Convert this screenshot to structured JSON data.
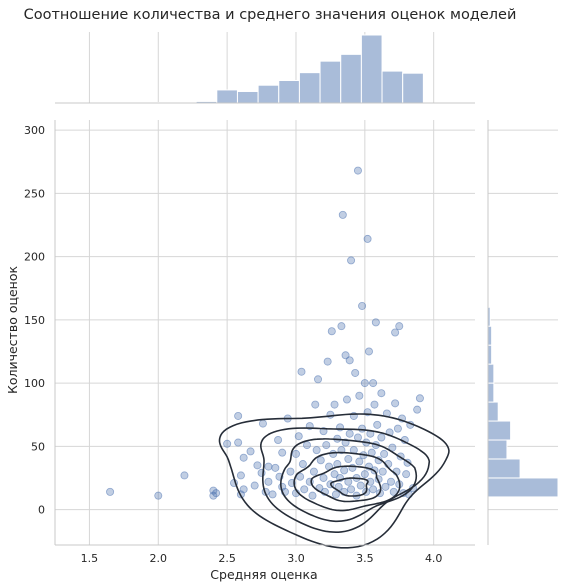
{
  "chart_data": {
    "type": "scatter",
    "title": "Соотношение количества и среднего значения оценок моделей",
    "xlabel": "Средняя оценка",
    "ylabel": "Количество оценок",
    "xlim": [
      1.25,
      4.3
    ],
    "ylim": [
      -28,
      308
    ],
    "x_ticks": [
      "1.5",
      "2.0",
      "2.5",
      "3.0",
      "3.5",
      "4.0"
    ],
    "y_ticks": [
      "0",
      "50",
      "100",
      "150",
      "200",
      "250",
      "300"
    ],
    "grid": true,
    "colors": {
      "points": "#4c72b0",
      "hist": "#a9bcd9",
      "contour": "#262d38",
      "grid": "#d6d6d6",
      "axis": "#c8c8c8"
    },
    "points": [
      [
        1.65,
        14
      ],
      [
        2.0,
        11
      ],
      [
        2.19,
        27
      ],
      [
        2.4,
        15
      ],
      [
        2.4,
        11
      ],
      [
        2.42,
        13
      ],
      [
        2.5,
        52
      ],
      [
        2.55,
        21
      ],
      [
        2.58,
        74
      ],
      [
        2.58,
        53
      ],
      [
        2.6,
        12
      ],
      [
        2.6,
        27
      ],
      [
        2.62,
        16
      ],
      [
        2.62,
        41
      ],
      [
        2.67,
        46
      ],
      [
        2.7,
        19
      ],
      [
        2.72,
        35
      ],
      [
        2.75,
        29
      ],
      [
        2.76,
        68
      ],
      [
        2.78,
        14
      ],
      [
        2.8,
        22
      ],
      [
        2.8,
        34
      ],
      [
        2.83,
        12
      ],
      [
        2.85,
        33
      ],
      [
        2.87,
        55
      ],
      [
        2.88,
        26
      ],
      [
        2.9,
        45
      ],
      [
        2.9,
        18
      ],
      [
        2.92,
        14
      ],
      [
        2.94,
        72
      ],
      [
        2.96,
        30
      ],
      [
        2.97,
        21
      ],
      [
        3.0,
        44
      ],
      [
        3.0,
        13
      ],
      [
        3.02,
        58
      ],
      [
        3.03,
        26
      ],
      [
        3.04,
        109
      ],
      [
        3.05,
        36
      ],
      [
        3.06,
        16
      ],
      [
        3.08,
        51
      ],
      [
        3.1,
        22
      ],
      [
        3.1,
        66
      ],
      [
        3.12,
        11
      ],
      [
        3.13,
        30
      ],
      [
        3.14,
        83
      ],
      [
        3.15,
        47
      ],
      [
        3.16,
        103
      ],
      [
        3.17,
        17
      ],
      [
        3.18,
        39
      ],
      [
        3.2,
        25
      ],
      [
        3.2,
        62
      ],
      [
        3.21,
        14
      ],
      [
        3.22,
        51
      ],
      [
        3.23,
        117
      ],
      [
        3.24,
        34
      ],
      [
        3.25,
        20
      ],
      [
        3.25,
        75
      ],
      [
        3.26,
        141
      ],
      [
        3.27,
        44
      ],
      [
        3.28,
        28
      ],
      [
        3.28,
        83
      ],
      [
        3.29,
        12
      ],
      [
        3.3,
        56
      ],
      [
        3.3,
        36
      ],
      [
        3.31,
        18
      ],
      [
        3.32,
        65
      ],
      [
        3.32,
        25
      ],
      [
        3.33,
        145
      ],
      [
        3.33,
        47
      ],
      [
        3.34,
        233
      ],
      [
        3.35,
        31
      ],
      [
        3.35,
        14
      ],
      [
        3.36,
        122
      ],
      [
        3.36,
        53
      ],
      [
        3.37,
        87
      ],
      [
        3.38,
        22
      ],
      [
        3.38,
        40
      ],
      [
        3.39,
        118
      ],
      [
        3.39,
        60
      ],
      [
        3.4,
        197
      ],
      [
        3.4,
        16
      ],
      [
        3.41,
        33
      ],
      [
        3.42,
        74
      ],
      [
        3.42,
        47
      ],
      [
        3.43,
        108
      ],
      [
        3.44,
        25
      ],
      [
        3.44,
        11
      ],
      [
        3.45,
        268
      ],
      [
        3.45,
        57
      ],
      [
        3.46,
        38
      ],
      [
        3.46,
        90
      ],
      [
        3.47,
        19
      ],
      [
        3.48,
        161
      ],
      [
        3.48,
        64
      ],
      [
        3.49,
        43
      ],
      [
        3.5,
        28
      ],
      [
        3.5,
        100
      ],
      [
        3.51,
        14
      ],
      [
        3.51,
        53
      ],
      [
        3.52,
        214
      ],
      [
        3.52,
        77
      ],
      [
        3.53,
        125
      ],
      [
        3.53,
        34
      ],
      [
        3.54,
        22
      ],
      [
        3.54,
        60
      ],
      [
        3.55,
        45
      ],
      [
        3.56,
        100
      ],
      [
        3.56,
        16
      ],
      [
        3.57,
        83
      ],
      [
        3.57,
        31
      ],
      [
        3.58,
        148
      ],
      [
        3.58,
        51
      ],
      [
        3.59,
        67
      ],
      [
        3.6,
        24
      ],
      [
        3.6,
        39
      ],
      [
        3.61,
        13
      ],
      [
        3.62,
        92
      ],
      [
        3.62,
        57
      ],
      [
        3.63,
        30
      ],
      [
        3.64,
        44
      ],
      [
        3.65,
        18
      ],
      [
        3.66,
        76
      ],
      [
        3.67,
        36
      ],
      [
        3.68,
        61
      ],
      [
        3.69,
        22
      ],
      [
        3.7,
        49
      ],
      [
        3.71,
        14
      ],
      [
        3.72,
        140
      ],
      [
        3.72,
        84
      ],
      [
        3.73,
        30
      ],
      [
        3.74,
        64
      ],
      [
        3.75,
        145
      ],
      [
        3.75,
        20
      ],
      [
        3.76,
        42
      ],
      [
        3.77,
        72
      ],
      [
        3.78,
        13
      ],
      [
        3.79,
        55
      ],
      [
        3.8,
        28
      ],
      [
        3.81,
        37
      ],
      [
        3.82,
        12
      ],
      [
        3.83,
        67
      ],
      [
        3.85,
        17
      ],
      [
        3.88,
        79
      ],
      [
        3.9,
        88
      ]
    ],
    "x_hist": {
      "bin_start": 1.375,
      "bin_width": 0.15,
      "counts": [
        0,
        1,
        0,
        1,
        1,
        1,
        3,
        25,
        22,
        34,
        43,
        58,
        80,
        93,
        130,
        61,
        57,
        0,
        0,
        0
      ]
    },
    "y_hist": {
      "bin_start": 10,
      "bin_width": 15,
      "counts": [
        96,
        44,
        26,
        31,
        14,
        8,
        8,
        5,
        5,
        3,
        1,
        1,
        0,
        0,
        0,
        0,
        0,
        0,
        0,
        0
      ]
    },
    "kde_levels": [
      {
        "cx": 3.26,
        "cy": 42,
        "rx": 0.8,
        "ry": 57
      },
      {
        "cx": 3.3,
        "cy": 38,
        "rx": 0.6,
        "ry": 45
      },
      {
        "cx": 3.35,
        "cy": 33,
        "rx": 0.47,
        "ry": 36
      },
      {
        "cx": 3.37,
        "cy": 28,
        "rx": 0.36,
        "ry": 26
      },
      {
        "cx": 3.38,
        "cy": 24,
        "rx": 0.24,
        "ry": 16
      },
      {
        "cx": 3.4,
        "cy": 20,
        "rx": 0.13,
        "ry": 8
      }
    ]
  }
}
